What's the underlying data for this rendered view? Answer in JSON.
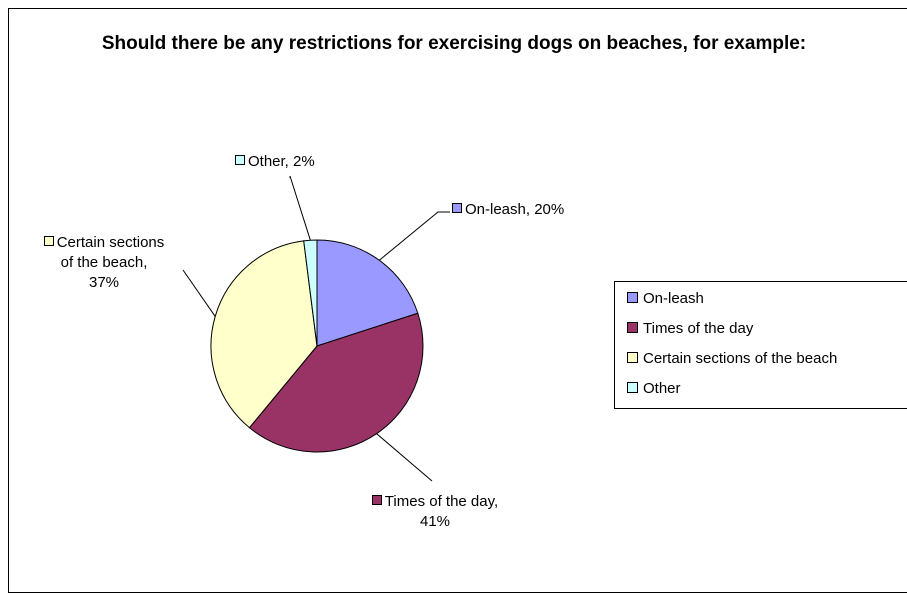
{
  "chart_data": {
    "type": "pie",
    "title": "Should there be any restrictions for exercising dogs on beaches, for example:",
    "slices": [
      {
        "name": "On-leash",
        "value": 20,
        "label": "On-leash,  20%",
        "color": "#9999ff"
      },
      {
        "name": "Times of the day",
        "value": 41,
        "label": "Times of the day, 41%",
        "color": "#993366"
      },
      {
        "name": "Certain sections of the beach",
        "value": 37,
        "label": "Certain sections of the beach, 37%",
        "color": "#ffffcc"
      },
      {
        "name": "Other",
        "value": 2,
        "label": "Other, 2%",
        "color": "#ccffff"
      }
    ],
    "legend_position": "right"
  },
  "legend": {
    "items": [
      "On-leash",
      "Times of the day",
      "Certain sections of the beach",
      "Other"
    ]
  },
  "labels": {
    "on_leash": "On-leash,  20%",
    "times_line1": "Times of the day,",
    "times_line2": "41%",
    "certain_line1": "Certain sections",
    "certain_line2": "of the beach,",
    "certain_line3": "37%",
    "other": "Other, 2%"
  }
}
